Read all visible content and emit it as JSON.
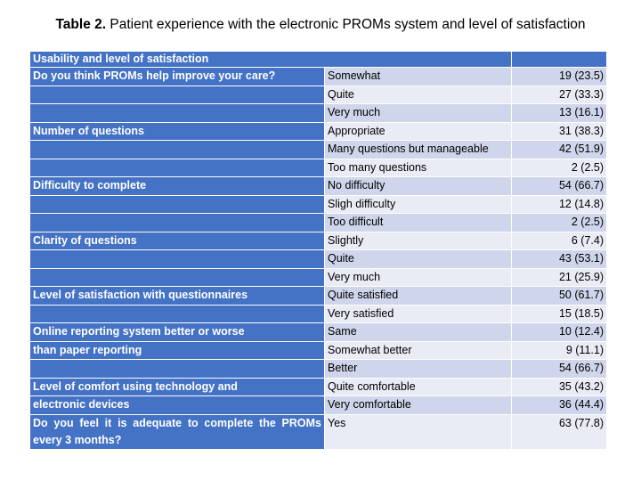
{
  "caption": {
    "label": "Table 2.",
    "text": "Patient experience with the electronic PROMs system and level of satisfaction"
  },
  "colors": {
    "header_blue": "#4472c4",
    "band_dark": "#cfd5ea",
    "band_light": "#e9ebf5"
  },
  "table": {
    "header": "Usability and level of satisfaction",
    "rows": [
      {
        "question": "Do you think PROMs help improve your care?",
        "answer": "Somewhat",
        "value": "19 (23.5)"
      },
      {
        "question": "",
        "answer": "Quite",
        "value": "27 (33.3)"
      },
      {
        "question": "",
        "answer": "Very much",
        "value": "13 (16.1)"
      },
      {
        "question": "Number of questions",
        "answer": "Appropriate",
        "value": "31 (38.3)"
      },
      {
        "question": "",
        "answer": "Many questions but manageable",
        "value": "42 (51.9)"
      },
      {
        "question": "",
        "answer": "Too many questions",
        "value": "2 (2.5)"
      },
      {
        "question": "Difficulty to complete",
        "answer": "No difficulty",
        "value": "54 (66.7)"
      },
      {
        "question": "",
        "answer": "Sligh difficulty",
        "value": "12 (14.8)"
      },
      {
        "question": "",
        "answer": "Too difficult",
        "value": "2 (2.5)"
      },
      {
        "question": "Clarity of questions",
        "answer": "Slightly",
        "value": "6 (7.4)"
      },
      {
        "question": "",
        "answer": "Quite",
        "value": "43 (53.1)"
      },
      {
        "question": "",
        "answer": "Very much",
        "value": "21 (25.9)"
      },
      {
        "question": "Level of satisfaction with questionnaires",
        "answer": "Quite satisfied",
        "value": "50 (61.7)"
      },
      {
        "question": "",
        "answer": "Very satisfied",
        "value": "15 (18.5)"
      },
      {
        "question": "Online reporting system better or worse",
        "answer": "Same",
        "value": "10 (12.4)"
      },
      {
        "question": "than paper reporting",
        "answer": "Somewhat better",
        "value": "9 (11.1)"
      },
      {
        "question": "",
        "answer": "Better",
        "value": "54 (66.7)"
      },
      {
        "question": "Level of comfort using technology and",
        "answer": "Quite comfortable",
        "value": "35 (43.2)"
      },
      {
        "question": "electronic devices",
        "answer": "Very comfortable",
        "value": "36 (44.4)"
      }
    ],
    "last_row": {
      "question_line1": "Do you feel it is adequate to complete the PROMs",
      "question_line2": "every 3 months?",
      "answer": "Yes",
      "value": "63 (77.8)"
    }
  }
}
